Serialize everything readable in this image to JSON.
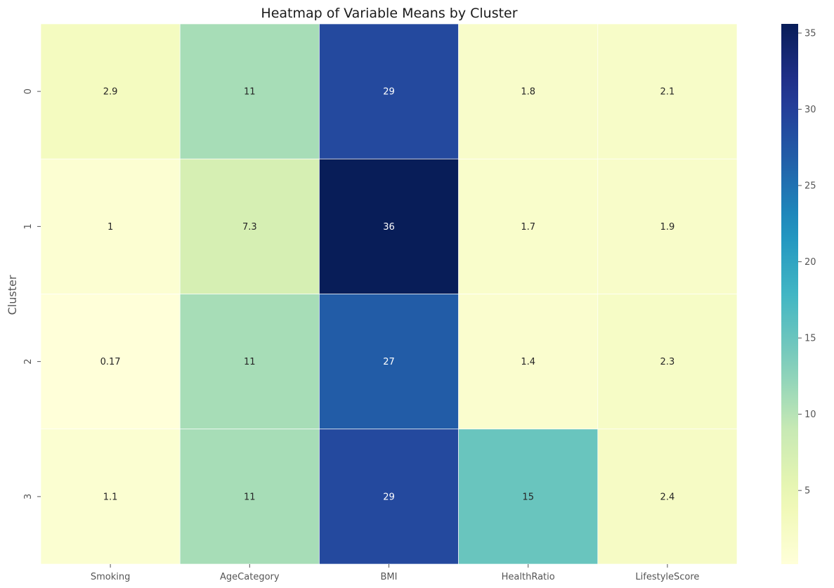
{
  "chart_data": {
    "type": "heatmap",
    "title": "Heatmap of Variable Means by Cluster",
    "xlabel": "",
    "ylabel": "Cluster",
    "x_categories": [
      "Smoking",
      "AgeCategory",
      "BMI",
      "HealthRatio",
      "LifestyleScore"
    ],
    "y_categories": [
      "0",
      "1",
      "2",
      "3"
    ],
    "values": [
      [
        2.9,
        11,
        29,
        1.8,
        2.1
      ],
      [
        1.0,
        7.3,
        36,
        1.7,
        1.9
      ],
      [
        0.17,
        11,
        27,
        1.4,
        2.3
      ],
      [
        1.1,
        11,
        29,
        15,
        2.4
      ]
    ],
    "cell_labels": [
      [
        "2.9",
        "11",
        "29",
        "1.8",
        "2.1"
      ],
      [
        "1",
        "7.3",
        "36",
        "1.7",
        "1.9"
      ],
      [
        "0.17",
        "11",
        "27",
        "1.4",
        "2.3"
      ],
      [
        "1.1",
        "11",
        "29",
        "15",
        "2.4"
      ]
    ],
    "colormap": "YlGnBu",
    "colorbar": {
      "vmin": 0.17,
      "vmax": 35.6,
      "ticks": [
        5,
        10,
        15,
        20,
        25,
        30,
        35
      ],
      "tick_labels": [
        "5",
        "10",
        "15",
        "20",
        "25",
        "30",
        "35"
      ]
    },
    "grid": false
  }
}
